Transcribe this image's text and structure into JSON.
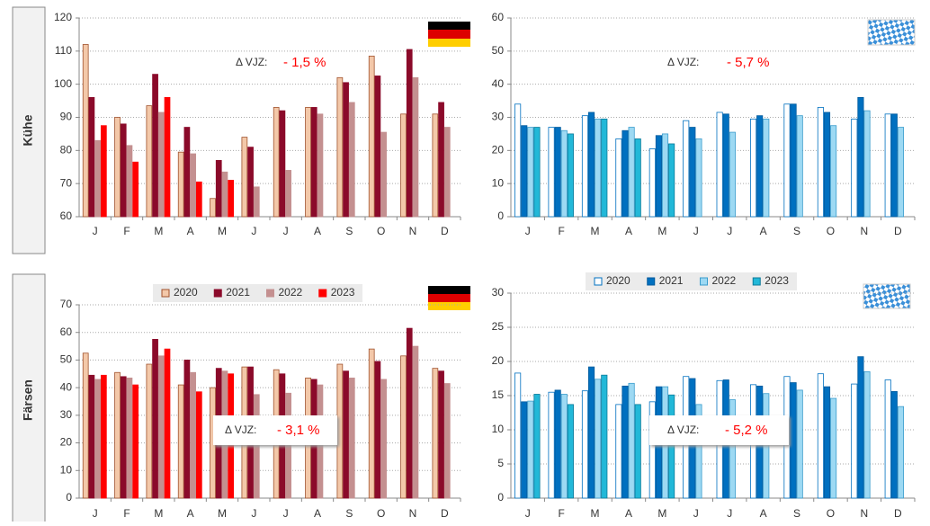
{
  "row_labels": [
    "Kühe",
    "Färsen"
  ],
  "chart_data": [
    {
      "type": "bar",
      "categories": [
        "J",
        "F",
        "M",
        "A",
        "M",
        "J",
        "J",
        "A",
        "S",
        "O",
        "N",
        "D"
      ],
      "ylim": [
        60,
        120
      ],
      "yticks": [
        60,
        70,
        80,
        90,
        100,
        110,
        120
      ],
      "grid": true,
      "legend": false,
      "annotations": [
        "Δ VJZ:",
        "- 1,5 %"
      ],
      "series": [
        {
          "name": "2020",
          "color": "#f3c8a9",
          "edgecolor": "#a0522d",
          "values": [
            112,
            90,
            93.5,
            79.5,
            65.5,
            84,
            93,
            93,
            102,
            108.5,
            91,
            91
          ]
        },
        {
          "name": "2021",
          "color": "#8b0a2a",
          "edgecolor": "#8b0a2a",
          "values": [
            96,
            88,
            103,
            87,
            77,
            81,
            92,
            93,
            100.5,
            102.5,
            110.5,
            94.5
          ]
        },
        {
          "name": "2022",
          "color": "#c49090",
          "edgecolor": "#c49090",
          "values": [
            83,
            81.5,
            91.5,
            79,
            73.5,
            69,
            74,
            91,
            94.5,
            85.5,
            102,
            87
          ]
        },
        {
          "name": "2023",
          "color": "#ff0000",
          "edgecolor": "#ff0000",
          "values": [
            87.5,
            76.5,
            96,
            70.5,
            71,
            null,
            null,
            null,
            null,
            null,
            null,
            null
          ]
        }
      ]
    },
    {
      "type": "bar",
      "categories": [
        "J",
        "F",
        "M",
        "A",
        "M",
        "J",
        "J",
        "A",
        "S",
        "O",
        "N",
        "D"
      ],
      "ylim": [
        0,
        60
      ],
      "yticks": [
        0,
        10,
        20,
        30,
        40,
        50,
        60
      ],
      "grid": true,
      "legend": false,
      "annotations": [
        "Δ VJZ:",
        "- 5,7 %"
      ],
      "series": [
        {
          "name": "2020",
          "color": "#ffffff",
          "edgecolor": "#0070c0",
          "values": [
            34,
            27,
            30.5,
            23.5,
            20.5,
            29,
            31.5,
            29.5,
            34,
            33,
            29.5,
            31
          ]
        },
        {
          "name": "2021",
          "color": "#0070c0",
          "edgecolor": "#005a9c",
          "values": [
            27.5,
            27,
            31.5,
            26,
            24.5,
            27,
            31,
            30.5,
            34,
            31.5,
            36,
            31
          ]
        },
        {
          "name": "2022",
          "color": "#9dd9f3",
          "edgecolor": "#3a9ccc",
          "values": [
            27,
            26,
            29.5,
            27,
            25,
            23.5,
            25.5,
            29.5,
            30.5,
            27.5,
            32,
            27
          ]
        },
        {
          "name": "2023",
          "color": "#22b8d8",
          "edgecolor": "#0a7a9a",
          "values": [
            27,
            25,
            29.5,
            23.5,
            22,
            null,
            null,
            null,
            null,
            null,
            null,
            null
          ]
        }
      ]
    },
    {
      "type": "bar",
      "categories": [
        "J",
        "F",
        "M",
        "A",
        "M",
        "J",
        "J",
        "A",
        "S",
        "O",
        "N",
        "D"
      ],
      "ylim": [
        0,
        70
      ],
      "yticks": [
        0,
        10,
        20,
        30,
        40,
        50,
        60,
        70
      ],
      "grid": true,
      "legend": true,
      "annotations": [
        "Δ VJZ:",
        "- 3,1 %"
      ],
      "series": [
        {
          "name": "2020",
          "color": "#f3c8a9",
          "edgecolor": "#a0522d",
          "values": [
            52.5,
            45.5,
            48.5,
            41,
            40,
            47.5,
            46.5,
            43.5,
            48.5,
            54,
            51.5,
            47
          ]
        },
        {
          "name": "2021",
          "color": "#8b0a2a",
          "edgecolor": "#8b0a2a",
          "values": [
            44.5,
            44,
            57.5,
            50,
            47,
            47.5,
            45,
            43,
            46,
            49.5,
            61.5,
            46
          ]
        },
        {
          "name": "2022",
          "color": "#c49090",
          "edgecolor": "#c49090",
          "values": [
            43,
            43.5,
            51.5,
            45.5,
            46,
            37.5,
            38,
            41,
            43.5,
            43,
            55,
            41.5
          ]
        },
        {
          "name": "2023",
          "color": "#ff0000",
          "edgecolor": "#ff0000",
          "values": [
            44.5,
            41,
            54,
            38.5,
            45,
            null,
            null,
            null,
            null,
            null,
            null,
            null
          ]
        }
      ]
    },
    {
      "type": "bar",
      "categories": [
        "J",
        "F",
        "M",
        "A",
        "M",
        "J",
        "J",
        "A",
        "S",
        "O",
        "N",
        "D"
      ],
      "ylim": [
        0,
        30
      ],
      "yticks": [
        0,
        5,
        10,
        15,
        20,
        25,
        30
      ],
      "grid": true,
      "legend": true,
      "annotations": [
        "Δ VJZ:",
        "- 5,2 %"
      ],
      "series": [
        {
          "name": "2020",
          "color": "#ffffff",
          "edgecolor": "#0070c0",
          "values": [
            18.3,
            15.5,
            15.7,
            13.7,
            14.1,
            17.8,
            17.2,
            16.6,
            17.8,
            18.2,
            16.7,
            17.3
          ]
        },
        {
          "name": "2021",
          "color": "#0070c0",
          "edgecolor": "#005a9c",
          "values": [
            14.1,
            15.8,
            19.2,
            16.4,
            16.3,
            17.5,
            17.3,
            16.4,
            16.9,
            16.3,
            20.7,
            15.6
          ]
        },
        {
          "name": "2022",
          "color": "#9dd9f3",
          "edgecolor": "#3a9ccc",
          "values": [
            14.2,
            15.2,
            17.4,
            16.8,
            16.3,
            13.7,
            14.4,
            15.3,
            15.8,
            14.6,
            18.5,
            13.4
          ]
        },
        {
          "name": "2023",
          "color": "#22b8d8",
          "edgecolor": "#0a7a9a",
          "values": [
            15.2,
            13.7,
            18,
            13.7,
            15.1,
            null,
            null,
            null,
            null,
            null,
            null,
            null
          ]
        }
      ]
    }
  ]
}
